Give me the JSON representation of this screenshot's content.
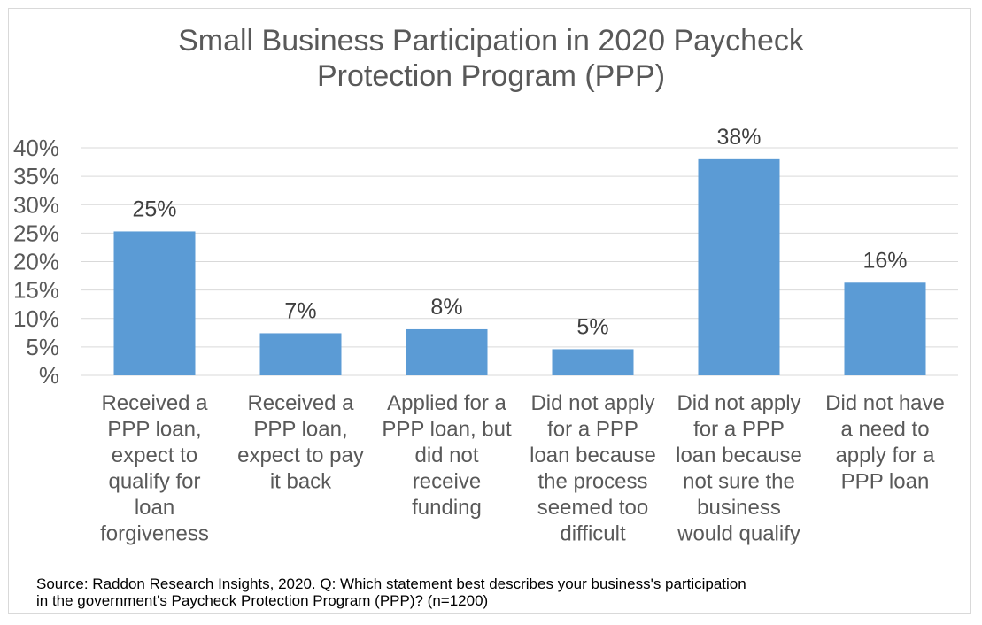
{
  "chart_data": {
    "type": "bar",
    "title_lines": [
      "Small Business Participation in 2020 Paycheck",
      "Protection Program (PPP)"
    ],
    "categories": [
      "Received a PPP loan, expect to qualify for loan forgiveness",
      "Received a PPP loan, expect to pay it back",
      "Applied for a PPP loan, but did not receive funding",
      "Did not apply for a PPP loan because the process seemed too difficult",
      "Did not apply for a PPP loan because not sure the business would qualify",
      "Did not have a need to apply for a PPP loan"
    ],
    "category_label_lines": [
      [
        "Received a",
        "PPP loan,",
        "expect to",
        "qualify for",
        "loan",
        "forgiveness"
      ],
      [
        "Received a",
        "PPP loan,",
        "expect to pay",
        "it back"
      ],
      [
        "Applied for a",
        "PPP loan, but",
        "did not",
        "receive",
        "funding"
      ],
      [
        "Did not apply",
        "for a PPP",
        "loan because",
        "the process",
        "seemed too",
        "difficult"
      ],
      [
        "Did not apply",
        "for a PPP",
        "loan because",
        "not sure the",
        "business",
        "would qualify"
      ],
      [
        "Did not have",
        "a need to",
        "apply for a",
        "PPP loan"
      ]
    ],
    "values": [
      25.3,
      7.4,
      8.1,
      4.6,
      38.0,
      16.3
    ],
    "data_labels": [
      "25%",
      "7%",
      "8%",
      "5%",
      "38%",
      "16%"
    ],
    "ylim": [
      0,
      40
    ],
    "yticks": [
      0,
      5,
      10,
      15,
      20,
      25,
      30,
      35,
      40
    ],
    "ytick_labels": [
      "%",
      "5%",
      "10%",
      "15%",
      "20%",
      "25%",
      "30%",
      "35%",
      "40%"
    ],
    "xlabel": "",
    "ylabel": "",
    "grid": true,
    "legend": "none",
    "bar_color": "#5b9bd5",
    "grid_color": "#d9d9d9",
    "text_color": "#595959"
  },
  "source_lines": [
    "Source: Raddon Research Insights, 2020. Q: Which statement best describes your business's participation",
    "in the government's Paycheck Protection Program (PPP)? (n=1200)"
  ]
}
